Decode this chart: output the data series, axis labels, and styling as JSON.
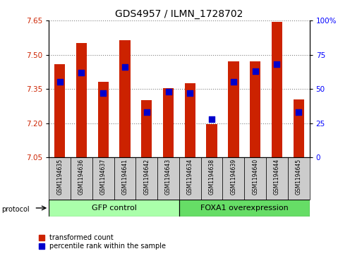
{
  "title": "GDS4957 / ILMN_1728702",
  "samples": [
    "GSM1194635",
    "GSM1194636",
    "GSM1194637",
    "GSM1194641",
    "GSM1194642",
    "GSM1194643",
    "GSM1194634",
    "GSM1194638",
    "GSM1194639",
    "GSM1194640",
    "GSM1194644",
    "GSM1194645"
  ],
  "transformed_count": [
    7.46,
    7.55,
    7.38,
    7.565,
    7.3,
    7.355,
    7.375,
    7.195,
    7.47,
    7.47,
    7.645,
    7.305
  ],
  "percentile_rank": [
    55,
    62,
    47,
    66,
    33,
    48,
    47,
    28,
    55,
    63,
    68,
    33
  ],
  "y_min": 7.05,
  "y_max": 7.65,
  "y_ticks": [
    7.05,
    7.2,
    7.35,
    7.5,
    7.65
  ],
  "y2_ticks": [
    0,
    25,
    50,
    75,
    100
  ],
  "bar_color": "#cc2200",
  "dot_color": "#0000cc",
  "group1_color": "#aaffaa",
  "group2_color": "#66dd66",
  "bg_color": "#cccccc",
  "group_label_1": "GFP control",
  "group_label_2": "FOXA1 overexpression",
  "legend_red": "transformed count",
  "legend_blue": "percentile rank within the sample",
  "bar_width": 0.5,
  "n_group1": 6,
  "n_group2": 6
}
